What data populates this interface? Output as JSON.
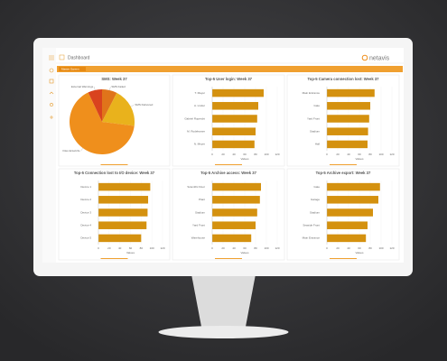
{
  "screen": {
    "title": "Dashboard",
    "logo": "netavis",
    "tab": "Master Screen"
  },
  "chart_data": [
    {
      "type": "pie",
      "title": "SMS: Week 37",
      "categories": [
        "SMS Failed",
        "SMS Delivered",
        "Files Entwürfe",
        "External Warnings"
      ],
      "values": [
        7.5,
        19.5,
        66,
        7
      ],
      "colors": [
        "#e0741a",
        "#e9b21c",
        "#ef8f1c",
        "#d9431e"
      ]
    },
    {
      "type": "bar",
      "title": "Top-5 User login: Week 37",
      "categories": [
        "T. Mayer",
        "A. Linder",
        "Gabriel Ruprecht",
        "M. Rodehamer",
        "N. Meyer"
      ],
      "values": [
        95,
        85,
        83,
        80,
        78
      ],
      "color": "#d4910f",
      "xlim": [
        0,
        120
      ],
      "xticks": [
        0,
        20,
        40,
        60,
        80,
        100,
        120
      ],
      "xlabel": "Values"
    },
    {
      "type": "bar",
      "title": "Top-5 Camera connection lost: Week 37",
      "categories": [
        "Main Entrance",
        "Gate",
        "Yard Front",
        "Stadium",
        "Hall"
      ],
      "values": [
        88,
        80,
        78,
        76,
        75
      ],
      "color": "#d4910f",
      "xlim": [
        0,
        120
      ],
      "xticks": [
        0,
        20,
        40,
        60,
        80,
        100,
        120
      ],
      "xlabel": "Values"
    },
    {
      "type": "bar",
      "title": "Top-5 Connection lost to I/O device: Week 37",
      "categories": [
        "Device 1",
        "Device 2",
        "Device 3",
        "Device 4",
        "Device 5"
      ],
      "values": [
        97,
        93,
        92,
        90,
        80
      ],
      "color": "#d4910f",
      "xlim": [
        0,
        120
      ],
      "xticks": [
        0,
        20,
        40,
        60,
        80,
        100,
        120
      ],
      "xlabel": "Values"
    },
    {
      "type": "bar",
      "title": "Top-5 Archive access: Week 37",
      "categories": [
        "Scientific Floor",
        "Plant",
        "Stadium",
        "Yard Front",
        "Warehouse"
      ],
      "values": [
        90,
        88,
        83,
        80,
        72
      ],
      "color": "#d4910f",
      "xlim": [
        0,
        120
      ],
      "xticks": [
        0,
        20,
        40,
        60,
        80,
        100,
        120
      ],
      "xlabel": "Values"
    },
    {
      "type": "bar",
      "title": "Top-5 Archive export: Week 37",
      "categories": [
        "Gate",
        "Garage",
        "Stadium",
        "Seaside Front",
        "Main Entrance"
      ],
      "values": [
        98,
        95,
        85,
        75,
        72
      ],
      "color": "#d4910f",
      "xlim": [
        0,
        120
      ],
      "xticks": [
        0,
        20,
        40,
        60,
        80,
        100,
        120
      ],
      "xlabel": "Values"
    }
  ]
}
